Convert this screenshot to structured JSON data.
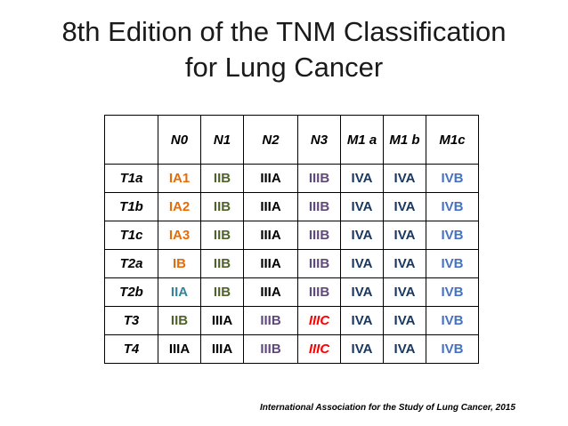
{
  "title": {
    "line1": "8th Edition of the TNM Classification",
    "line2": "for Lung Cancer"
  },
  "colors": {
    "IA": "#e46c0a",
    "IB": "#e46c0a",
    "IIA": "#31849b",
    "IIB": "#4f6228",
    "IIIA": "#000000",
    "IIIB": "#5f497a",
    "IIIC": "#ff0000",
    "IVA": "#17375e",
    "IVB": "#4472c4"
  },
  "table": {
    "corner": "",
    "columns": [
      "N0",
      "N1",
      "N2",
      "N3",
      "M1 a",
      "M1 b",
      "M1c"
    ],
    "rows": [
      {
        "label": "T1a",
        "cells": [
          {
            "text": "IA1",
            "stage": "IA"
          },
          {
            "text": "IIB",
            "stage": "IIB"
          },
          {
            "text": "IIIA",
            "stage": "IIIA"
          },
          {
            "text": "IIIB",
            "stage": "IIIB"
          },
          {
            "text": "IVA",
            "stage": "IVA"
          },
          {
            "text": "IVA",
            "stage": "IVA"
          },
          {
            "text": "IVB",
            "stage": "IVB"
          }
        ]
      },
      {
        "label": "T1b",
        "cells": [
          {
            "text": "IA2",
            "stage": "IA"
          },
          {
            "text": "IIB",
            "stage": "IIB"
          },
          {
            "text": "IIIA",
            "stage": "IIIA"
          },
          {
            "text": "IIIB",
            "stage": "IIIB"
          },
          {
            "text": "IVA",
            "stage": "IVA"
          },
          {
            "text": "IVA",
            "stage": "IVA"
          },
          {
            "text": "IVB",
            "stage": "IVB"
          }
        ]
      },
      {
        "label": "T1c",
        "cells": [
          {
            "text": "IA3",
            "stage": "IA"
          },
          {
            "text": "IIB",
            "stage": "IIB"
          },
          {
            "text": "IIIA",
            "stage": "IIIA"
          },
          {
            "text": "IIIB",
            "stage": "IIIB"
          },
          {
            "text": "IVA",
            "stage": "IVA"
          },
          {
            "text": "IVA",
            "stage": "IVA"
          },
          {
            "text": "IVB",
            "stage": "IVB"
          }
        ]
      },
      {
        "label": "T2a",
        "cells": [
          {
            "text": "IB",
            "stage": "IB"
          },
          {
            "text": "IIB",
            "stage": "IIB"
          },
          {
            "text": "IIIA",
            "stage": "IIIA"
          },
          {
            "text": "IIIB",
            "stage": "IIIB"
          },
          {
            "text": "IVA",
            "stage": "IVA"
          },
          {
            "text": "IVA",
            "stage": "IVA"
          },
          {
            "text": "IVB",
            "stage": "IVB"
          }
        ]
      },
      {
        "label": "T2b",
        "cells": [
          {
            "text": "IIA",
            "stage": "IIA"
          },
          {
            "text": "IIB",
            "stage": "IIB"
          },
          {
            "text": "IIIA",
            "stage": "IIIA"
          },
          {
            "text": "IIIB",
            "stage": "IIIB"
          },
          {
            "text": "IVA",
            "stage": "IVA"
          },
          {
            "text": "IVA",
            "stage": "IVA"
          },
          {
            "text": "IVB",
            "stage": "IVB"
          }
        ]
      },
      {
        "label": "T3",
        "cells": [
          {
            "text": "IIB",
            "stage": "IIB"
          },
          {
            "text": "IIIA",
            "stage": "IIIA"
          },
          {
            "text": "IIIB",
            "stage": "IIIB"
          },
          {
            "text": "IIIC",
            "stage": "IIIC",
            "italic": true
          },
          {
            "text": "IVA",
            "stage": "IVA"
          },
          {
            "text": "IVA",
            "stage": "IVA"
          },
          {
            "text": "IVB",
            "stage": "IVB"
          }
        ]
      },
      {
        "label": "T4",
        "cells": [
          {
            "text": "IIIA",
            "stage": "IIIA"
          },
          {
            "text": "IIIA",
            "stage": "IIIA"
          },
          {
            "text": "IIIB",
            "stage": "IIIB"
          },
          {
            "text": "IIIC",
            "stage": "IIIC",
            "italic": true
          },
          {
            "text": "IVA",
            "stage": "IVA"
          },
          {
            "text": "IVA",
            "stage": "IVA"
          },
          {
            "text": "IVB",
            "stage": "IVB"
          }
        ]
      }
    ]
  },
  "footer": "International Association  for the Study of Lung Cancer, 2015"
}
